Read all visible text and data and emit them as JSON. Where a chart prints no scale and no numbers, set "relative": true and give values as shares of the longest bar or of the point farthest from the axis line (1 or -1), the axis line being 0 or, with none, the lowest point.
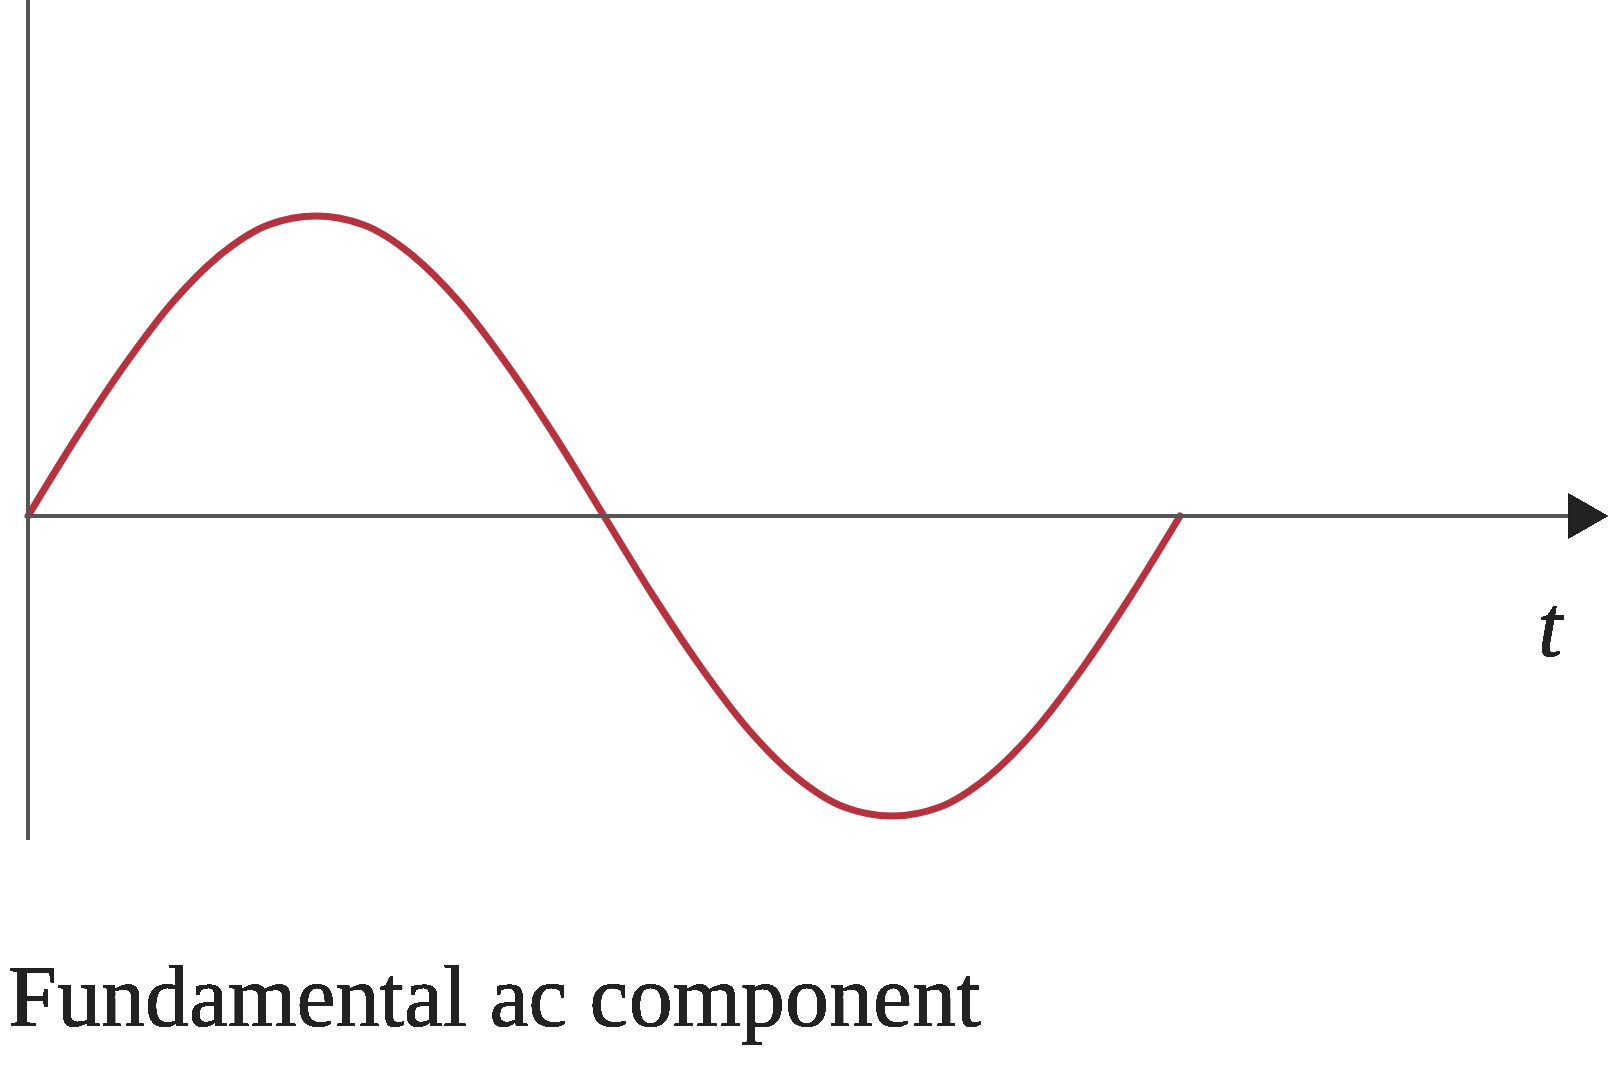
{
  "chart_data": {
    "type": "line",
    "relative": true,
    "xlabel": "t",
    "annotations": [
      "Fundamental ac component"
    ],
    "categories": [
      null,
      null,
      null,
      null,
      null,
      null,
      null,
      null,
      null,
      null,
      null,
      null,
      null,
      null,
      null,
      null,
      null,
      null,
      null,
      null,
      null,
      null,
      null,
      null,
      null
    ],
    "values": [
      0,
      0.26,
      0.5,
      0.71,
      0.87,
      0.97,
      1,
      0.97,
      0.87,
      0.71,
      0.5,
      0.26,
      0,
      -0.26,
      -0.5,
      -0.71,
      -0.87,
      -0.97,
      -1,
      -0.97,
      -0.87,
      -0.71,
      -0.5,
      -0.26,
      0
    ],
    "color": "#b5333f",
    "marker": "none",
    "line_style": "solid"
  }
}
